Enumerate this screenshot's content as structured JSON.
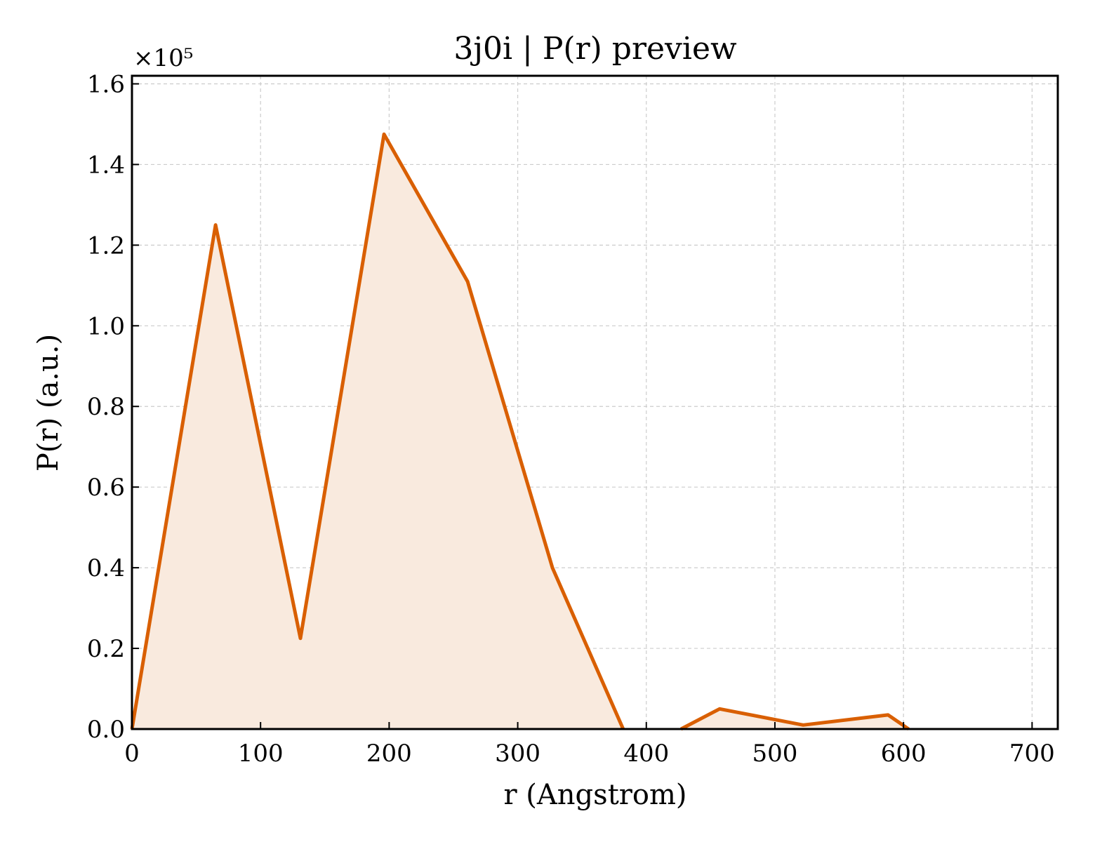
{
  "chart_data": {
    "type": "area",
    "title": "3j0i | P(r) preview",
    "xlabel": "r (Angstrom)",
    "ylabel": "P(r) (a.u.)",
    "y_offset_label": "×10⁵",
    "xlim": [
      0,
      720
    ],
    "ylim": [
      0,
      1.62
    ],
    "y_scale_multiplier": 100000,
    "x_ticks": [
      0,
      100,
      200,
      300,
      400,
      500,
      600,
      700
    ],
    "x_tick_labels": [
      "0",
      "100",
      "200",
      "300",
      "400",
      "500",
      "600",
      "700"
    ],
    "y_ticks": [
      0.0,
      0.2,
      0.4,
      0.6,
      0.8,
      1.0,
      1.2,
      1.4,
      1.6
    ],
    "y_tick_labels": [
      "0.0",
      "0.2",
      "0.4",
      "0.6",
      "0.8",
      "1.0",
      "1.2",
      "1.4",
      "1.6"
    ],
    "grid": true,
    "line_color": "#d95f02",
    "fill_color": "#f9eade",
    "series": [
      {
        "x": [
          0,
          65,
          131,
          196,
          261,
          327,
          382
        ],
        "y": [
          0.0,
          1.25,
          0.225,
          1.475,
          1.11,
          0.4,
          0.0
        ]
      },
      {
        "x": [
          427,
          457,
          522,
          588,
          604
        ],
        "y": [
          0.0,
          0.05,
          0.01,
          0.035,
          0.0
        ]
      }
    ]
  }
}
